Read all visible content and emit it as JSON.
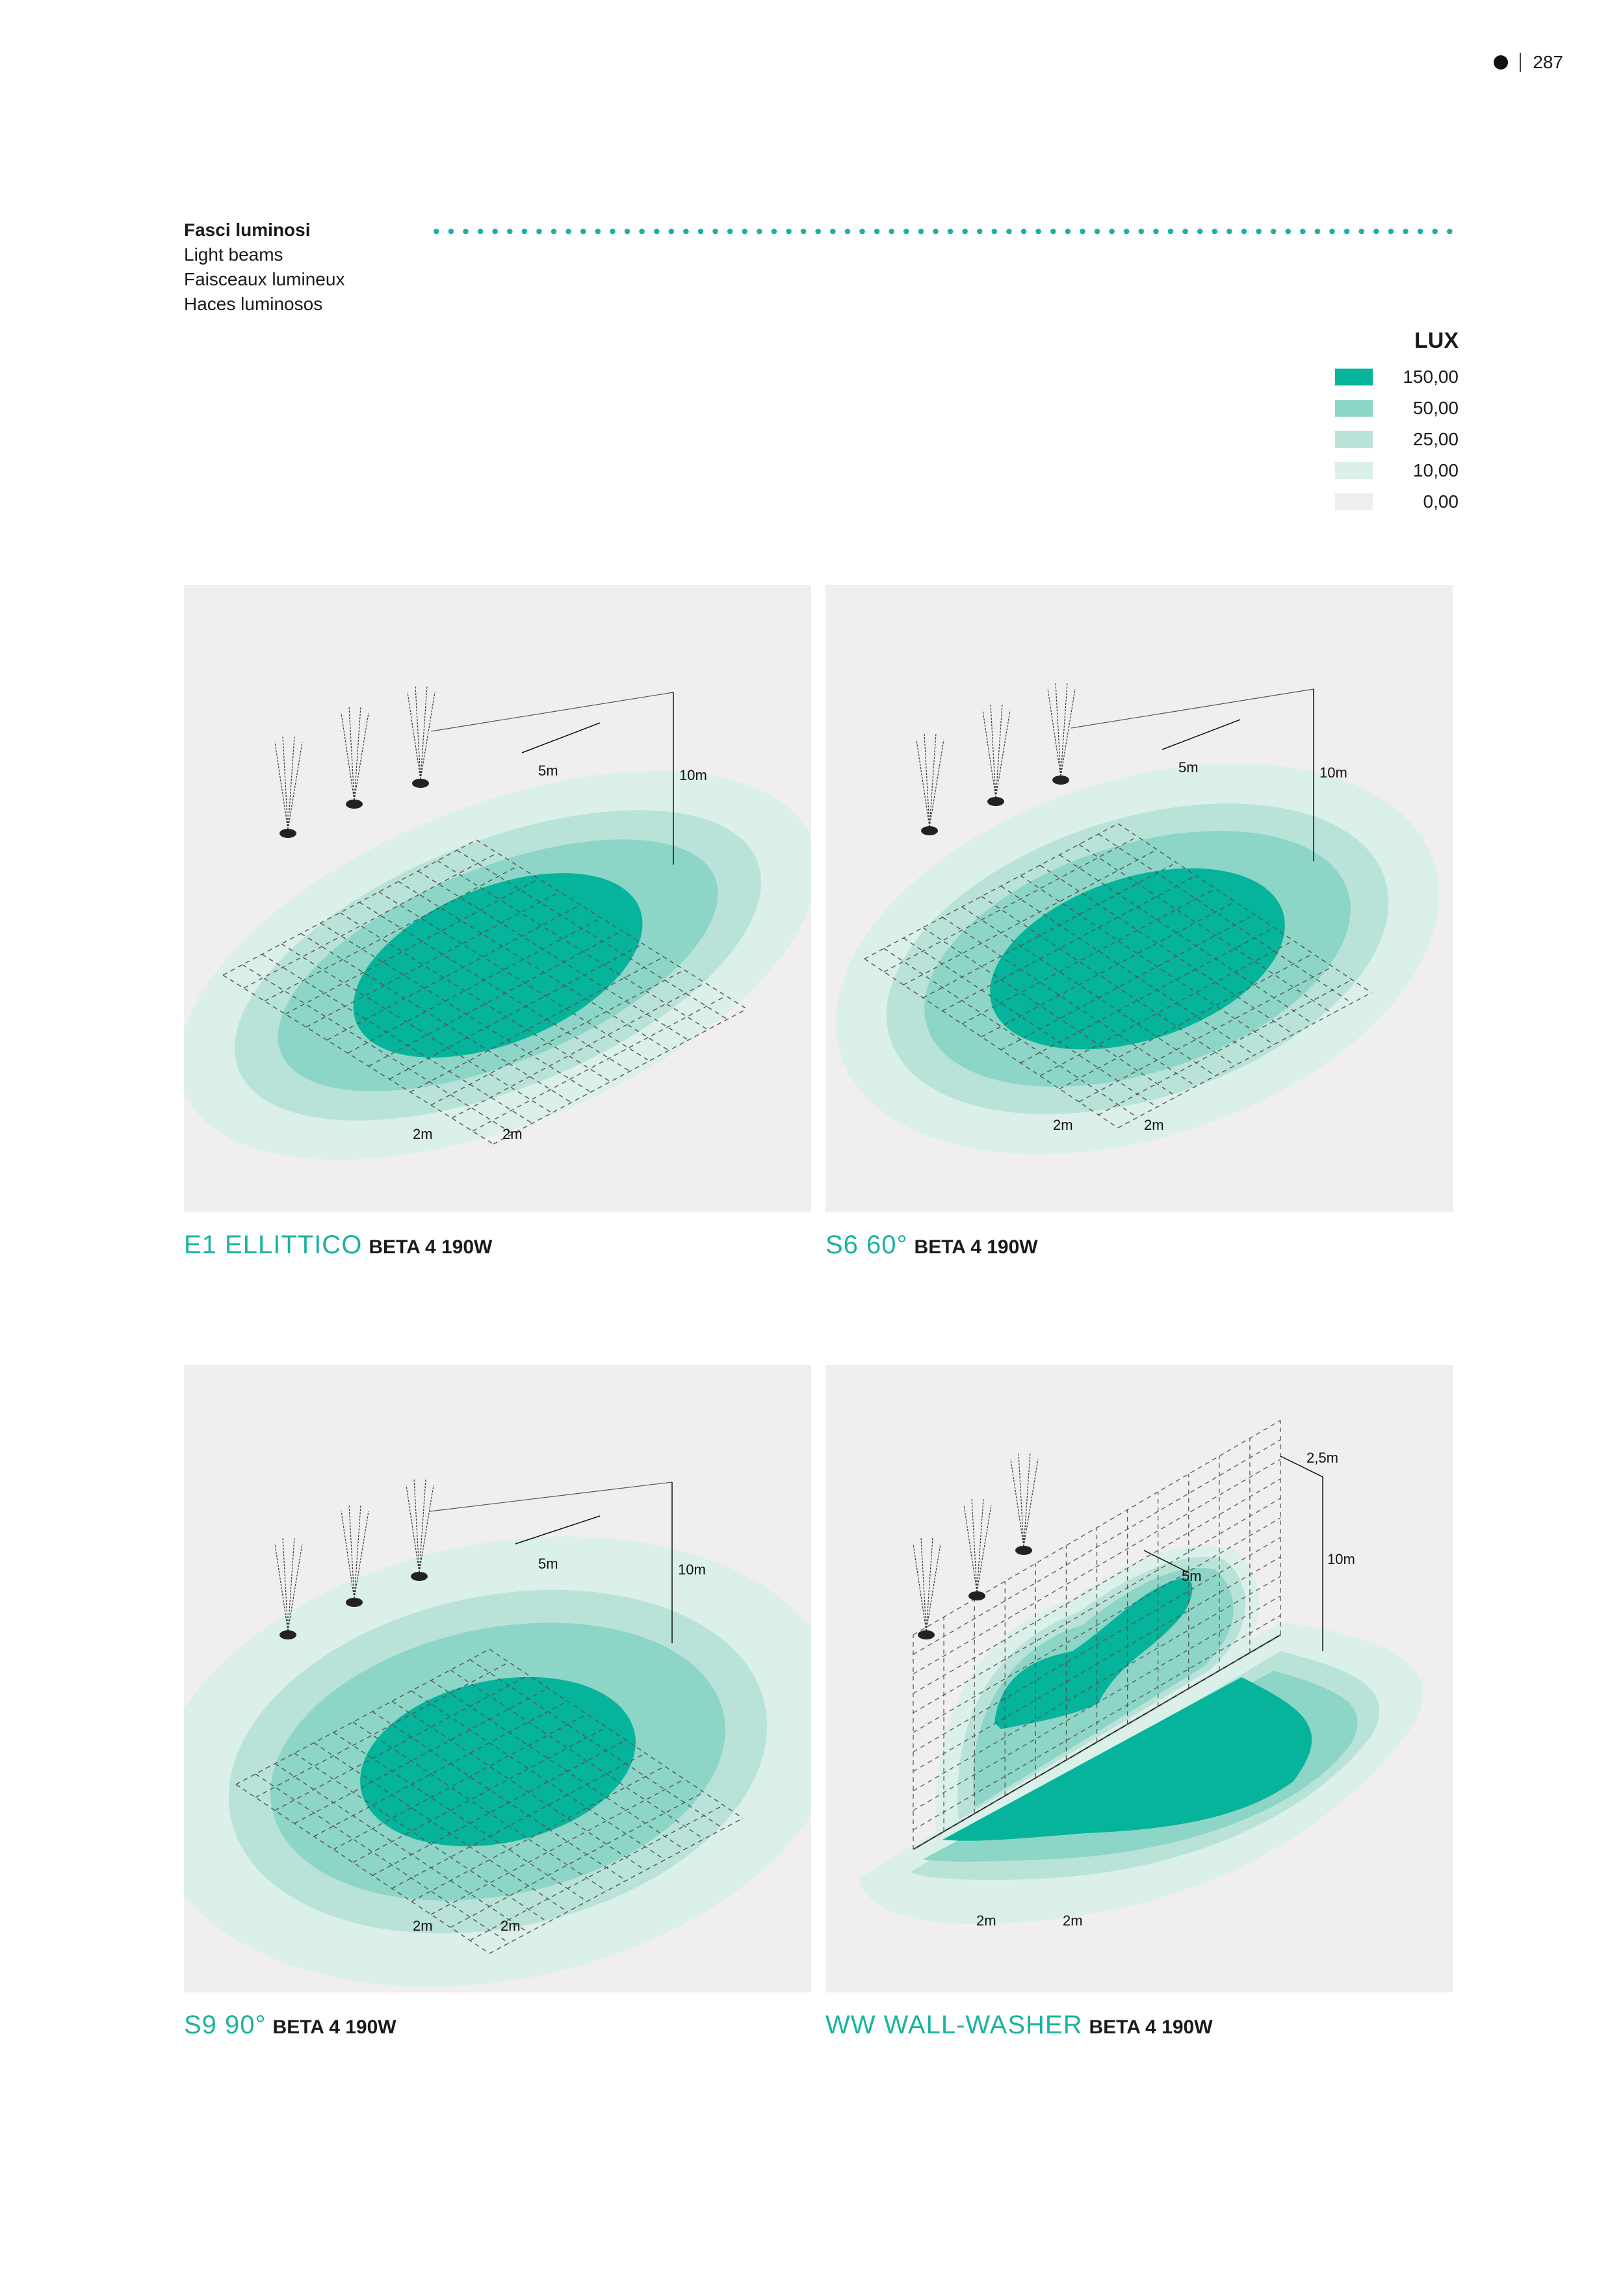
{
  "page": {
    "number": "287"
  },
  "header": {
    "it": "Fasci luminosi",
    "en": "Light beams",
    "fr": "Faisceaux lumineux",
    "es": "Haces luminosos"
  },
  "legend": {
    "title": "LUX",
    "items": [
      {
        "value": "150,00",
        "color": "#06b39b"
      },
      {
        "value": "50,00",
        "color": "#8dd5c6"
      },
      {
        "value": "25,00",
        "color": "#b9e3d9"
      },
      {
        "value": "10,00",
        "color": "#dcf0ea"
      },
      {
        "value": "0,00",
        "color": "#eeeeec"
      }
    ]
  },
  "panels": [
    {
      "name": "E1 ELLITTICO",
      "model": "BETA 4 190W",
      "dim_spacing": "5m",
      "dim_height": "10m",
      "dim_grid_a": "2m",
      "dim_grid_b": "2m"
    },
    {
      "name": "S6 60°",
      "model": "BETA 4 190W",
      "dim_spacing": "5m",
      "dim_height": "10m",
      "dim_grid_a": "2m",
      "dim_grid_b": "2m"
    },
    {
      "name": "S9 90°",
      "model": "BETA 4 190W",
      "dim_spacing": "5m",
      "dim_height": "10m",
      "dim_grid_a": "2m",
      "dim_grid_b": "2m"
    },
    {
      "name": "WW WALL-WASHER",
      "model": "BETA 4 190W",
      "dim_spacing": "5m",
      "dim_height": "10m",
      "dim_wall": "2,5m",
      "dim_grid_a": "2m",
      "dim_grid_b": "2m"
    }
  ]
}
